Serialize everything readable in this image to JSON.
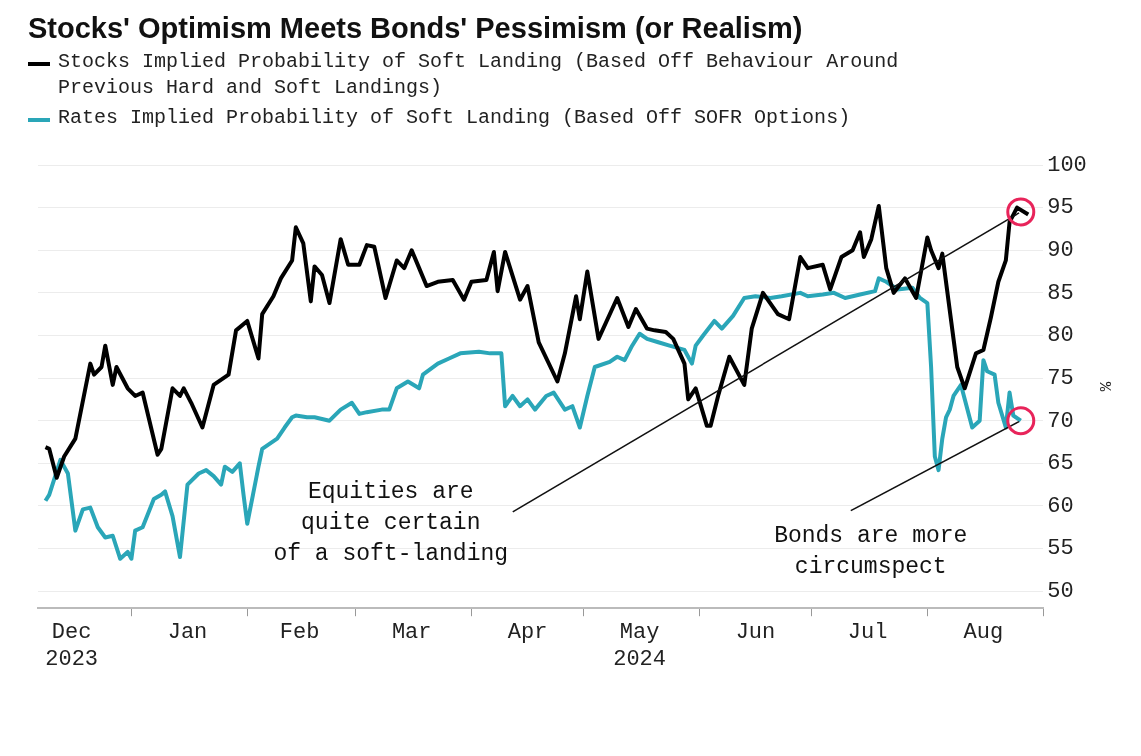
{
  "chart_data": {
    "type": "line",
    "title": "Stocks' Optimism Meets Bonds' Pessimism (or Realism)",
    "ylabel": "%",
    "legend": "top left",
    "grid": "y",
    "xlim": [
      "2023-12-07",
      "2024-09-01"
    ],
    "xticks": [
      {
        "value": "2023-12-16",
        "label": "Dec\n2023"
      },
      {
        "value": "2024-01-01",
        "label": null
      },
      {
        "value": "2024-01-16",
        "label": "Jan"
      },
      {
        "value": "2024-02-01",
        "label": null
      },
      {
        "value": "2024-02-15",
        "label": "Feb"
      },
      {
        "value": "2024-03-01",
        "label": null
      },
      {
        "value": "2024-03-16",
        "label": "Mar"
      },
      {
        "value": "2024-04-01",
        "label": null
      },
      {
        "value": "2024-04-16",
        "label": "Apr"
      },
      {
        "value": "2024-05-01",
        "label": null
      },
      {
        "value": "2024-05-16",
        "label": "May\n2024"
      },
      {
        "value": "2024-06-01",
        "label": null
      },
      {
        "value": "2024-06-16",
        "label": "Jun"
      },
      {
        "value": "2024-07-01",
        "label": null
      },
      {
        "value": "2024-07-16",
        "label": "Jul"
      },
      {
        "value": "2024-08-01",
        "label": null
      },
      {
        "value": "2024-08-16",
        "label": "Aug"
      },
      {
        "value": "2024-09-01",
        "label": null
      }
    ],
    "ylim": [
      48,
      100
    ],
    "yticks": [
      50,
      55,
      60,
      65,
      70,
      75,
      80,
      85,
      90,
      95,
      100
    ],
    "series": [
      {
        "name": "Stocks Implied Probability of Soft Landing (Based Off Behaviour Around Previous Hard and Soft Landings)",
        "color": "#000000",
        "x": [
          "2023-12-09",
          "2023-12-10",
          "2023-12-12",
          "2023-12-14",
          "2023-12-17",
          "2023-12-21",
          "2023-12-22",
          "2023-12-24",
          "2023-12-25",
          "2023-12-27",
          "2023-12-28",
          "2023-12-31",
          "2024-01-02",
          "2024-01-04",
          "2024-01-08",
          "2024-01-09",
          "2024-01-12",
          "2024-01-14",
          "2024-01-15",
          "2024-01-17",
          "2024-01-20",
          "2024-01-23",
          "2024-01-27",
          "2024-01-29",
          "2024-02-01",
          "2024-02-04",
          "2024-02-05",
          "2024-02-08",
          "2024-02-10",
          "2024-02-13",
          "2024-02-14",
          "2024-02-16",
          "2024-02-18",
          "2024-02-19",
          "2024-02-21",
          "2024-02-23",
          "2024-02-26",
          "2024-02-28",
          "2024-03-02",
          "2024-03-04",
          "2024-03-06",
          "2024-03-09",
          "2024-03-12",
          "2024-03-14",
          "2024-03-16",
          "2024-03-18",
          "2024-03-20",
          "2024-03-23",
          "2024-03-27",
          "2024-03-30",
          "2024-04-01",
          "2024-04-05",
          "2024-04-07",
          "2024-04-08",
          "2024-04-10",
          "2024-04-14",
          "2024-04-16",
          "2024-04-19",
          "2024-04-24",
          "2024-04-26",
          "2024-04-29",
          "2024-04-30",
          "2024-05-02",
          "2024-05-05",
          "2024-05-10",
          "2024-05-13",
          "2024-05-15",
          "2024-05-18",
          "2024-05-20",
          "2024-05-23",
          "2024-05-25",
          "2024-05-28",
          "2024-05-29",
          "2024-05-31",
          "2024-06-03",
          "2024-06-04",
          "2024-06-06",
          "2024-06-09",
          "2024-06-13",
          "2024-06-15",
          "2024-06-18",
          "2024-06-22",
          "2024-06-25",
          "2024-06-28",
          "2024-06-30",
          "2024-07-04",
          "2024-07-06",
          "2024-07-09",
          "2024-07-12",
          "2024-07-14",
          "2024-07-15",
          "2024-07-17",
          "2024-07-19",
          "2024-07-21",
          "2024-07-23",
          "2024-07-26",
          "2024-07-29",
          "2024-08-01",
          "2024-08-02",
          "2024-08-04",
          "2024-08-05",
          "2024-08-08",
          "2024-08-09",
          "2024-08-11",
          "2024-08-14",
          "2024-08-16",
          "2024-08-18",
          "2024-08-20",
          "2024-08-22",
          "2024-08-23",
          "2024-08-25",
          "2024-08-28"
        ],
        "values": [
          66.9,
          66.7,
          63.3,
          65.8,
          67.9,
          76.7,
          75.4,
          76.3,
          78.8,
          74.2,
          76.3,
          73.8,
          72.9,
          73.3,
          66.0,
          66.7,
          73.8,
          72.9,
          73.8,
          72.1,
          69.2,
          74.2,
          75.4,
          80.6,
          81.7,
          77.3,
          82.5,
          84.6,
          86.7,
          88.8,
          92.7,
          90.8,
          84.0,
          88.1,
          87.1,
          83.8,
          91.3,
          88.3,
          88.3,
          90.6,
          90.4,
          84.4,
          88.8,
          87.9,
          90.0,
          87.9,
          85.8,
          86.3,
          86.5,
          84.2,
          86.3,
          86.5,
          89.8,
          85.2,
          89.8,
          84.2,
          85.8,
          79.2,
          74.6,
          77.9,
          84.6,
          81.9,
          87.5,
          79.6,
          84.4,
          81.0,
          83.1,
          80.8,
          80.6,
          80.4,
          79.6,
          76.7,
          72.5,
          73.8,
          69.4,
          69.4,
          72.9,
          77.5,
          74.2,
          80.8,
          85.0,
          82.5,
          81.9,
          89.2,
          87.9,
          88.3,
          85.4,
          89.2,
          90.0,
          92.1,
          89.2,
          91.3,
          95.2,
          87.9,
          85.0,
          86.7,
          84.4,
          91.5,
          90.0,
          87.9,
          89.6,
          79.6,
          76.3,
          73.8,
          77.9,
          78.3,
          82.1,
          86.3,
          88.8,
          93.3,
          95.0,
          94.2
        ]
      },
      {
        "name": "Rates Implied Probability of Soft Landing (Based Off SOFR Options)",
        "color": "#2aa6b8",
        "x": [
          "2023-12-09",
          "2023-12-10",
          "2023-12-13",
          "2023-12-15",
          "2023-12-17",
          "2023-12-19",
          "2023-12-21",
          "2023-12-23",
          "2023-12-25",
          "2023-12-27",
          "2023-12-29",
          "2023-12-31",
          "2024-01-01",
          "2024-01-02",
          "2024-01-04",
          "2024-01-07",
          "2024-01-09",
          "2024-01-10",
          "2024-01-12",
          "2024-01-14",
          "2024-01-16",
          "2024-01-19",
          "2024-01-21",
          "2024-01-23",
          "2024-01-25",
          "2024-01-26",
          "2024-01-28",
          "2024-01-30",
          "2024-01-31",
          "2024-02-01",
          "2024-02-04",
          "2024-02-05",
          "2024-02-09",
          "2024-02-11",
          "2024-02-13",
          "2024-02-14",
          "2024-02-17",
          "2024-02-19",
          "2024-02-23",
          "2024-02-26",
          "2024-02-29",
          "2024-03-02",
          "2024-03-04",
          "2024-03-08",
          "2024-03-10",
          "2024-03-12",
          "2024-03-15",
          "2024-03-18",
          "2024-03-19",
          "2024-03-23",
          "2024-03-26",
          "2024-03-29",
          "2024-04-03",
          "2024-04-06",
          "2024-04-09",
          "2024-04-10",
          "2024-04-12",
          "2024-04-14",
          "2024-04-16",
          "2024-04-18",
          "2024-04-21",
          "2024-04-23",
          "2024-04-26",
          "2024-04-28",
          "2024-04-30",
          "2024-05-02",
          "2024-05-04",
          "2024-05-08",
          "2024-05-10",
          "2024-05-12",
          "2024-05-14",
          "2024-05-16",
          "2024-05-18",
          "2024-05-21",
          "2024-05-24",
          "2024-05-28",
          "2024-05-30",
          "2024-05-31",
          "2024-06-02",
          "2024-06-05",
          "2024-06-07",
          "2024-06-10",
          "2024-06-13",
          "2024-06-16",
          "2024-06-20",
          "2024-06-23",
          "2024-06-28",
          "2024-06-30",
          "2024-07-04",
          "2024-07-07",
          "2024-07-10",
          "2024-07-14",
          "2024-07-18",
          "2024-07-19",
          "2024-07-21",
          "2024-07-24",
          "2024-07-28",
          "2024-07-30",
          "2024-08-01",
          "2024-08-02",
          "2024-08-03",
          "2024-08-04",
          "2024-08-05",
          "2024-08-06",
          "2024-08-07",
          "2024-08-08",
          "2024-08-10",
          "2024-08-13",
          "2024-08-15",
          "2024-08-16",
          "2024-08-17",
          "2024-08-19",
          "2024-08-20",
          "2024-08-22",
          "2024-08-23",
          "2024-08-24",
          "2024-08-26"
        ],
        "values": [
          60.6,
          61.3,
          65.4,
          63.8,
          57.1,
          59.6,
          59.8,
          57.5,
          56.3,
          56.5,
          53.8,
          54.6,
          53.8,
          57.1,
          57.5,
          60.8,
          61.3,
          61.7,
          58.8,
          54.0,
          62.5,
          63.8,
          64.2,
          63.5,
          62.5,
          64.6,
          64.0,
          65.0,
          61.3,
          57.9,
          64.6,
          66.7,
          67.9,
          69.2,
          70.4,
          70.6,
          70.4,
          70.4,
          70.0,
          71.3,
          72.1,
          70.8,
          71.0,
          71.3,
          71.3,
          73.8,
          74.6,
          73.8,
          75.4,
          76.7,
          77.3,
          77.9,
          78.1,
          77.9,
          77.9,
          71.7,
          72.9,
          71.7,
          72.5,
          71.3,
          72.9,
          73.3,
          71.3,
          71.7,
          69.2,
          72.9,
          76.3,
          76.9,
          77.5,
          77.1,
          78.8,
          80.2,
          79.6,
          79.2,
          78.8,
          78.3,
          76.7,
          78.8,
          80.0,
          81.7,
          80.8,
          82.3,
          84.4,
          84.6,
          84.4,
          84.6,
          85.0,
          84.6,
          84.8,
          85.0,
          84.4,
          84.8,
          85.2,
          86.7,
          86.3,
          85.4,
          85.6,
          84.4,
          83.8,
          76.3,
          65.8,
          64.2,
          67.9,
          70.4,
          71.3,
          72.9,
          74.2,
          69.2,
          70.0,
          77.1,
          75.8,
          75.4,
          72.1,
          69.2,
          73.3,
          70.6,
          70.0
        ]
      }
    ],
    "annotations": [
      {
        "text": "Equities are\nquite certain\nof a soft-landing",
        "x": "2024-08-26",
        "y": 94.5
      },
      {
        "text": "Bonds are more\ncircumspect",
        "x": "2024-08-26",
        "y": 70
      }
    ]
  }
}
